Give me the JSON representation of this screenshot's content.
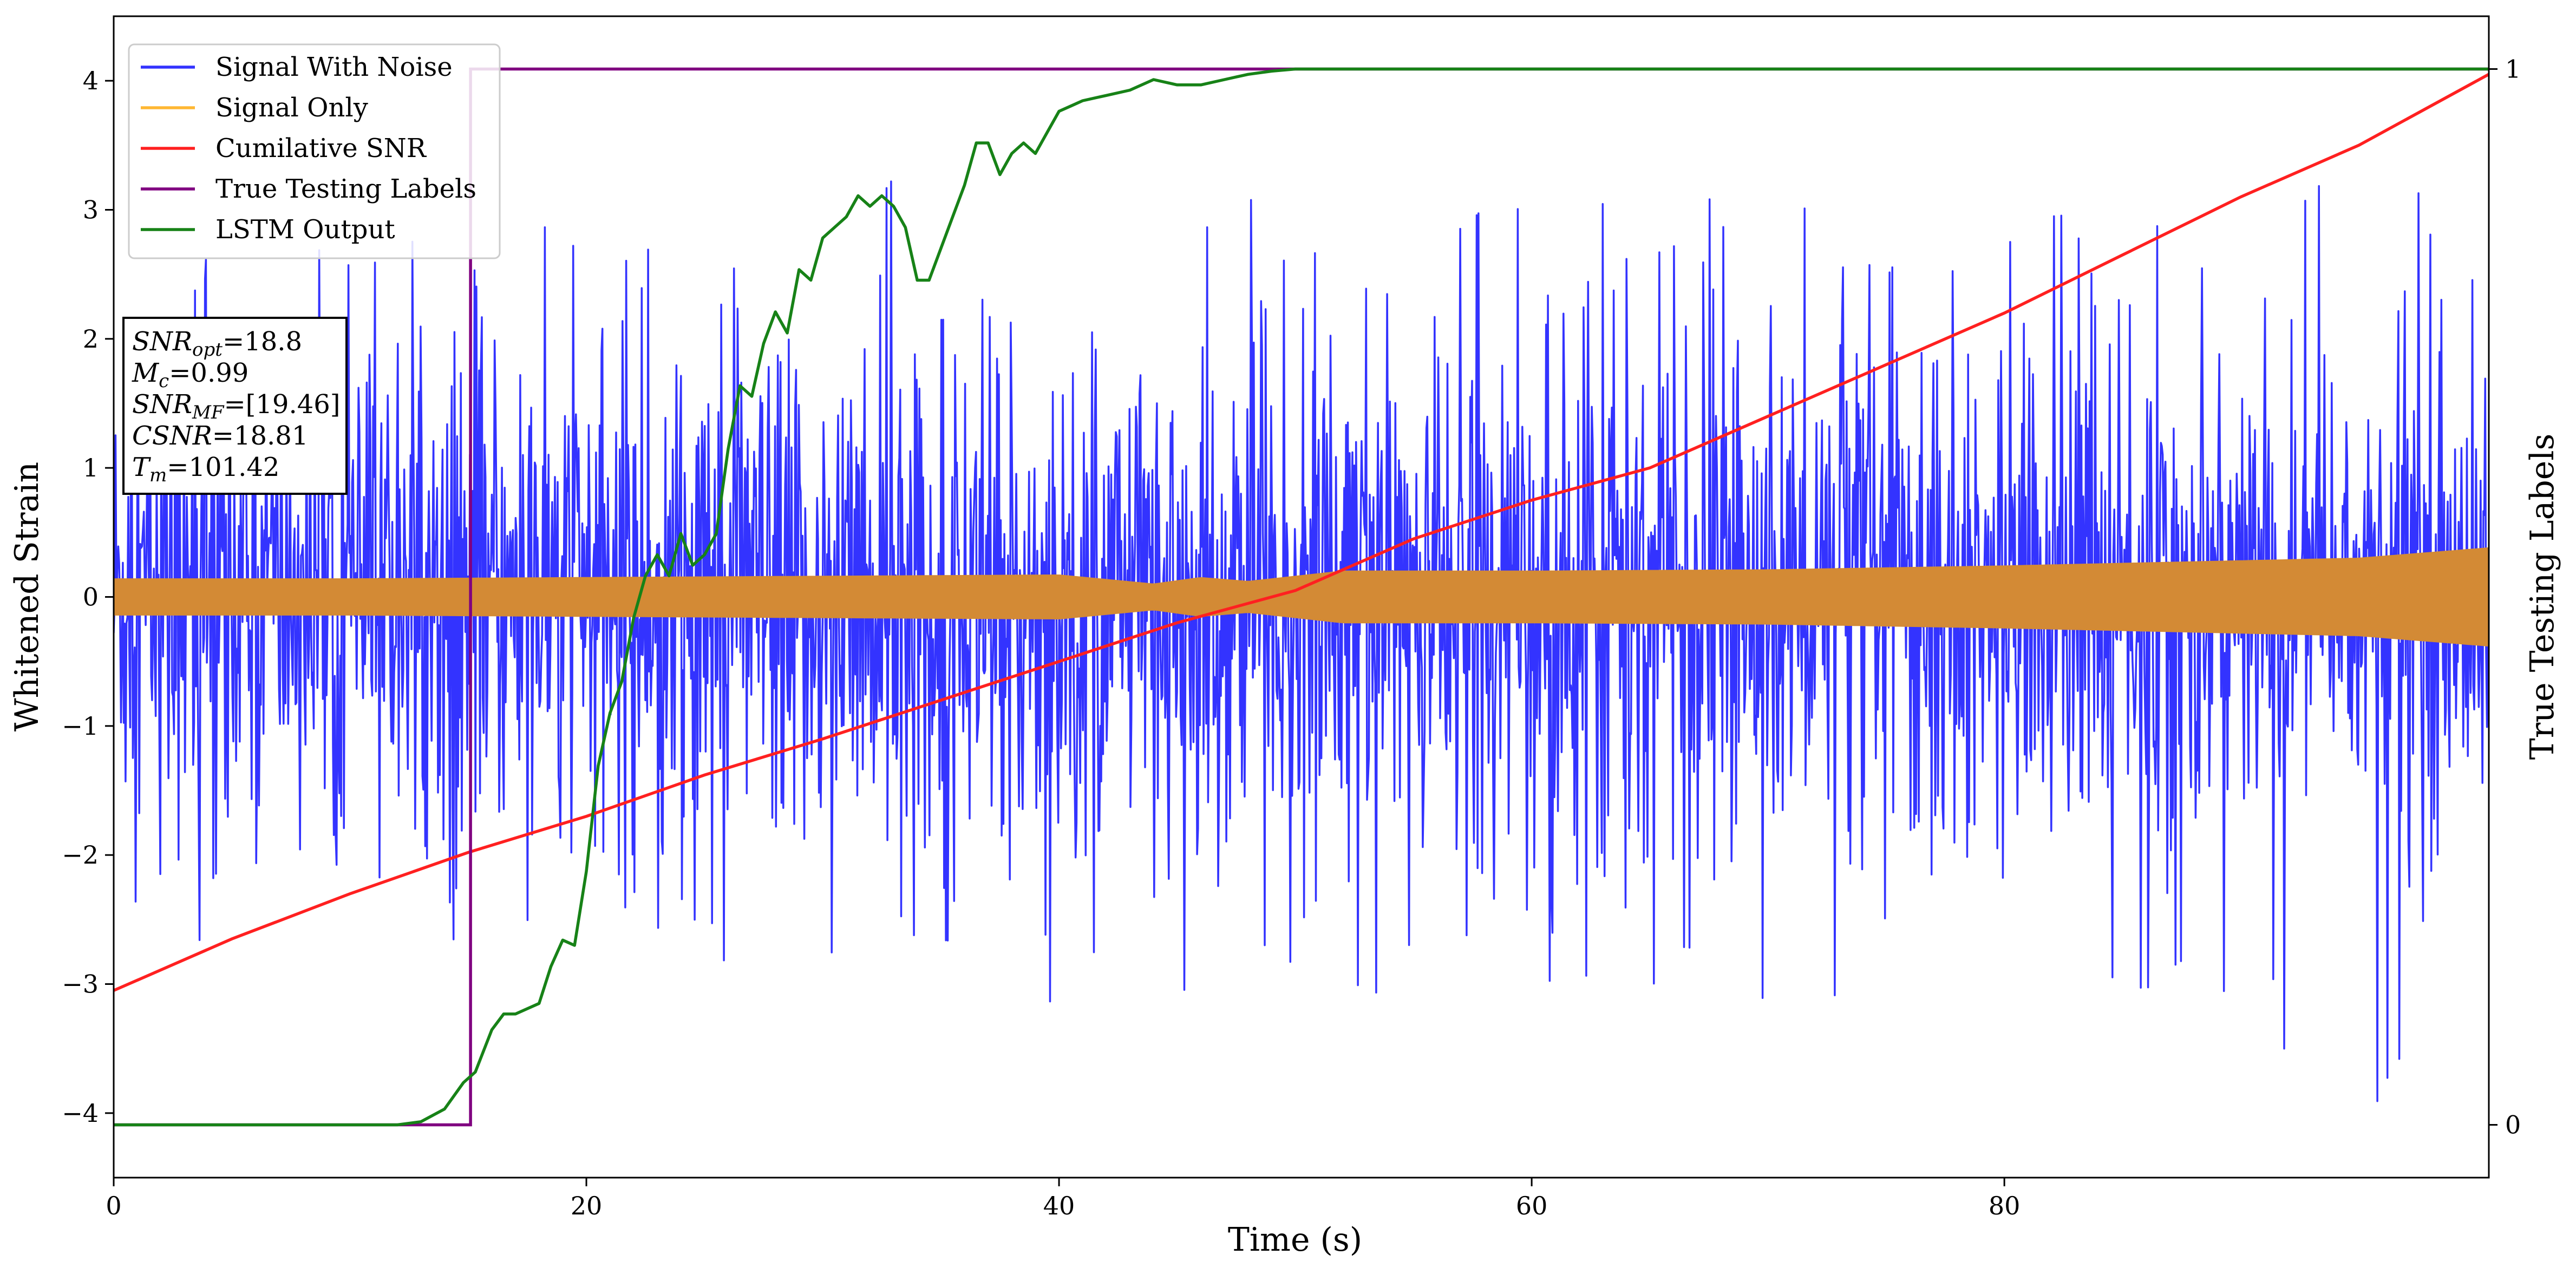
{
  "chart_data": {
    "type": "line",
    "title": "",
    "xlabel": "Time (s)",
    "ylabel": "Whitened Strain",
    "y2label": "True Testing Labels",
    "xlim": [
      0,
      100.5
    ],
    "ylim": [
      -4.5,
      4.5
    ],
    "y2lim": [
      -0.05,
      1.05
    ],
    "xticks": [
      0,
      20,
      40,
      60,
      80
    ],
    "yticks": [
      -4,
      -3,
      -2,
      -1,
      0,
      1,
      2,
      3,
      4
    ],
    "y2ticks": [
      0,
      1
    ],
    "tick_labels": {
      "x": [
        "0",
        "20",
        "40",
        "60",
        "80"
      ],
      "y": [
        "−4",
        "−3",
        "−2",
        "−1",
        "0",
        "1",
        "2",
        "3",
        "4"
      ],
      "y2": [
        "0",
        "1"
      ]
    },
    "grid": false,
    "legend_position": "top-left",
    "legend": [
      {
        "name": "Signal With Noise",
        "color": "#3333ff"
      },
      {
        "name": "Signal Only",
        "color": "#ffb733"
      },
      {
        "name": "Cumilative SNR",
        "color": "#ff2020"
      },
      {
        "name": "True Testing Labels",
        "color": "#800080"
      },
      {
        "name": "LSTM Output",
        "color": "#178217"
      }
    ],
    "info_box": [
      {
        "sym": "SNR",
        "sub": "opt",
        "val": "=18.8"
      },
      {
        "sym": "M",
        "sub": "c",
        "val": "=0.99"
      },
      {
        "sym": "SNR",
        "sub": "MF",
        "val": "=[19.46]"
      },
      {
        "sym": "CSNR",
        "sub": "",
        "val": "=18.81"
      },
      {
        "sym": "T",
        "sub": "m",
        "val": "=101.42"
      }
    ],
    "series": [
      {
        "name": "Signal With Noise",
        "axis": "left",
        "color": "#3333ff",
        "noise_description": "dense white noise, roughly +/-2.5, extremes about 3.4 and -4.1",
        "envelope_x": [
          0,
          10,
          20,
          30,
          40,
          50,
          60,
          70,
          80,
          90,
          100.5
        ],
        "envelope_upper": [
          2.6,
          2.7,
          2.9,
          3.4,
          3.0,
          3.1,
          3.0,
          3.2,
          3.1,
          3.2,
          3.4
        ],
        "envelope_lower": [
          -3.0,
          -2.8,
          -2.7,
          -2.9,
          -3.2,
          -3.1,
          -3.0,
          -3.3,
          -3.1,
          -4.0,
          -4.1
        ]
      },
      {
        "name": "Signal Only",
        "axis": "left",
        "color": "#d38a35",
        "amplitude_x": [
          0,
          10,
          20,
          30,
          40,
          44,
          46,
          48,
          52,
          60,
          70,
          80,
          90,
          95,
          100.5
        ],
        "amplitude": [
          0.14,
          0.14,
          0.15,
          0.16,
          0.17,
          0.1,
          0.15,
          0.12,
          0.2,
          0.2,
          0.21,
          0.24,
          0.28,
          0.3,
          0.38
        ]
      },
      {
        "name": "Cumilative SNR",
        "axis": "left",
        "color": "#ff2020",
        "x": [
          0,
          5,
          10,
          15,
          20,
          25,
          30,
          35,
          40,
          45,
          50,
          55,
          60,
          65,
          70,
          75,
          80,
          85,
          90,
          95,
          100.5
        ],
        "y": [
          -3.05,
          -2.65,
          -2.3,
          -1.98,
          -1.7,
          -1.38,
          -1.1,
          -0.8,
          -0.5,
          -0.2,
          0.05,
          0.45,
          0.75,
          1.0,
          1.4,
          1.8,
          2.2,
          2.65,
          3.1,
          3.5,
          4.05
        ]
      },
      {
        "name": "True Testing Labels",
        "axis": "right",
        "color": "#800080",
        "x": [
          0,
          15.1,
          15.1,
          100.5
        ],
        "y": [
          0,
          0,
          1,
          1
        ]
      },
      {
        "name": "LSTM Output",
        "axis": "right",
        "color": "#178217",
        "x": [
          0,
          12,
          13,
          14,
          14.8,
          15.3,
          16,
          16.5,
          17,
          17.5,
          18,
          18.5,
          19,
          19.5,
          20,
          20.5,
          21,
          21.5,
          22,
          22.5,
          23,
          23.5,
          24,
          24.5,
          25,
          25.5,
          26,
          26.5,
          27,
          27.5,
          28,
          28.5,
          29,
          29.5,
          30,
          30.5,
          31,
          31.5,
          32,
          32.5,
          33,
          33.5,
          34,
          34.5,
          35,
          35.5,
          36,
          36.5,
          37,
          37.5,
          38,
          38.5,
          39,
          39.5,
          40,
          40.5,
          41,
          42,
          43,
          44,
          45,
          46,
          47,
          48,
          49,
          50,
          52,
          54,
          56,
          60,
          100.5
        ],
        "y": [
          0,
          0,
          0.003,
          0.015,
          0.04,
          0.05,
          0.09,
          0.105,
          0.105,
          0.11,
          0.115,
          0.15,
          0.175,
          0.17,
          0.24,
          0.34,
          0.39,
          0.42,
          0.48,
          0.52,
          0.54,
          0.52,
          0.56,
          0.53,
          0.54,
          0.56,
          0.64,
          0.7,
          0.69,
          0.74,
          0.77,
          0.75,
          0.81,
          0.8,
          0.84,
          0.85,
          0.86,
          0.88,
          0.87,
          0.88,
          0.87,
          0.85,
          0.8,
          0.8,
          0.83,
          0.86,
          0.89,
          0.93,
          0.93,
          0.9,
          0.92,
          0.93,
          0.92,
          0.94,
          0.96,
          0.965,
          0.97,
          0.975,
          0.98,
          0.99,
          0.985,
          0.985,
          0.99,
          0.995,
          0.998,
          1.0,
          1.0,
          1.0,
          1.0,
          1.0,
          1.0
        ]
      }
    ]
  }
}
